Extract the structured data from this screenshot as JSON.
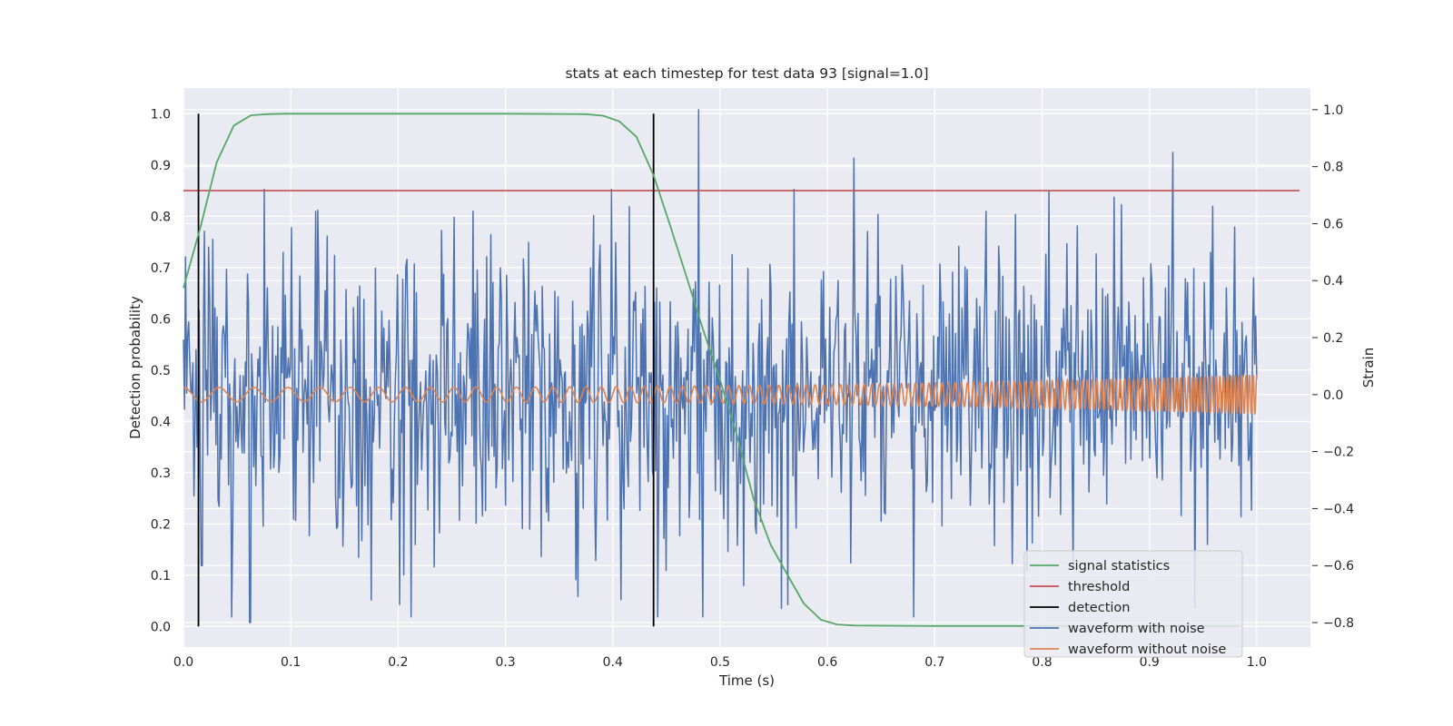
{
  "chart_data": {
    "type": "line",
    "title": "stats at each timestep for test data 93 [signal=1.0]",
    "xlabel": "Time (s)",
    "ylabel": "Detection probability",
    "y2label": "Strain",
    "xlim": [
      0.0,
      1.05
    ],
    "ylim": [
      -0.04,
      1.05
    ],
    "y2lim": [
      -0.886,
      1.076
    ],
    "xticks": [
      "0.0",
      "0.1",
      "0.2",
      "0.3",
      "0.4",
      "0.5",
      "0.6",
      "0.7",
      "0.8",
      "0.9",
      "1.0"
    ],
    "yticks": [
      "0.0",
      "0.1",
      "0.2",
      "0.3",
      "0.4",
      "0.5",
      "0.6",
      "0.7",
      "0.8",
      "0.9",
      "1.0"
    ],
    "y2ticks": [
      "−0.8",
      "−0.6",
      "−0.4",
      "−0.2",
      "0.0",
      "0.2",
      "0.4",
      "0.6",
      "0.8",
      "1.0"
    ],
    "grid": true,
    "background": "#EAEAF2",
    "legend_position": "lower-right",
    "threshold": 0.85,
    "detections": [
      0.014,
      0.438
    ],
    "series": [
      {
        "name": "signal statistics",
        "axis": "left",
        "color": "#55A868",
        "x": [
          0.0,
          0.016,
          0.031,
          0.047,
          0.063,
          0.078,
          0.094,
          0.2,
          0.3,
          0.375,
          0.391,
          0.406,
          0.422,
          0.438,
          0.453,
          0.469,
          0.484,
          0.5,
          0.516,
          0.531,
          0.547,
          0.563,
          0.578,
          0.594,
          0.609,
          0.625,
          0.7,
          0.8,
          0.9,
          0.984
        ],
        "values": [
          0.66,
          0.78,
          0.905,
          0.977,
          0.997,
          0.999,
          1.0,
          1.0,
          1.0,
          0.999,
          0.996,
          0.985,
          0.955,
          0.88,
          0.785,
          0.68,
          0.58,
          0.48,
          0.37,
          0.25,
          0.16,
          0.1,
          0.045,
          0.013,
          0.004,
          0.002,
          0.001,
          0.001,
          0.001,
          0.001
        ]
      },
      {
        "name": "threshold",
        "axis": "left",
        "color": "#C44E52",
        "x": [
          0.0,
          1.05
        ],
        "values": [
          0.85,
          0.85
        ]
      },
      {
        "name": "detection",
        "axis": "left",
        "color": "#000000",
        "x": [
          0.014,
          0.438
        ],
        "values": [
          1.0,
          1.0
        ]
      },
      {
        "name": "waveform with noise",
        "axis": "right",
        "color": "#4C72B0",
        "x_range": [
          0.0,
          1.0
        ],
        "n_points": 1024,
        "noise_sigma": 0.27,
        "peaks": [
          {
            "x": 0.48,
            "value": 1.0
          },
          {
            "x": 0.922,
            "value": 0.85
          },
          {
            "x": 0.062,
            "value": -0.8
          },
          {
            "x": 0.408,
            "value": -0.72
          },
          {
            "x": 0.625,
            "value": 0.83
          },
          {
            "x": 0.017,
            "value": -0.6
          }
        ]
      },
      {
        "name": "waveform without noise",
        "axis": "right",
        "color": "#DD8452",
        "x_range": [
          0.0,
          1.0
        ],
        "amplitude_start": 0.025,
        "amplitude_end": 0.07,
        "cycles_start": 30,
        "cycles_end": 120
      }
    ]
  }
}
